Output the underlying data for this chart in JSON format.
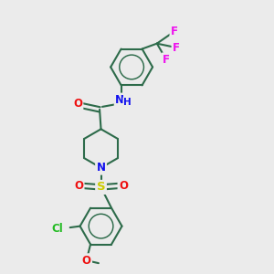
{
  "bg_color": "#ebebeb",
  "bond_color": "#2d6b4a",
  "bond_width": 1.5,
  "atom_colors": {
    "N": "#1010ee",
    "O": "#ee1010",
    "S": "#cccc00",
    "Cl": "#22bb22",
    "F": "#ee10ee",
    "C": "#2d6b4a"
  },
  "font_size_atom": 8.5,
  "font_size_small": 7.0
}
